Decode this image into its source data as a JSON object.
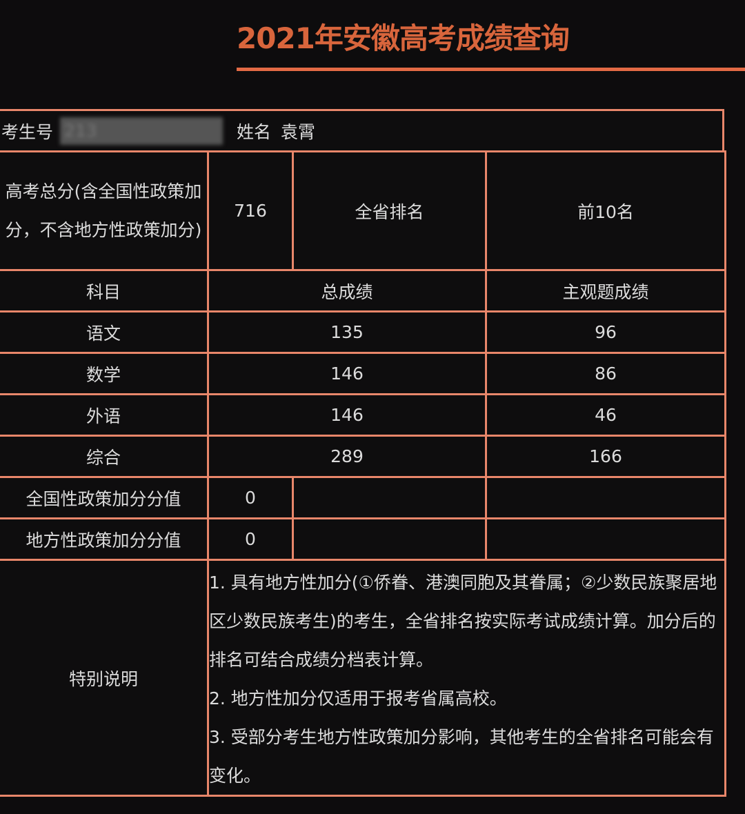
{
  "title": "2021年安徽高考成绩查询",
  "header": {
    "exam_no_label": "考生号",
    "exam_no_value": "213",
    "name_label": "姓名",
    "name_value": "袁霄"
  },
  "total": {
    "label": "高考总分(含全国性政策加分，不含地方性政策加分)",
    "value": "716",
    "rank_label": "全省排名",
    "rank_value": "前10名"
  },
  "columns": [
    "科目",
    "总成绩",
    "主观题成绩"
  ],
  "rows": [
    {
      "subject": "语文",
      "total": "135",
      "subjective": "96"
    },
    {
      "subject": "数学",
      "total": "146",
      "subjective": "86"
    },
    {
      "subject": "外语",
      "total": "146",
      "subjective": "46"
    },
    {
      "subject": "综合",
      "total": "289",
      "subjective": "166"
    }
  ],
  "bonus": [
    {
      "label": "全国性政策加分分值",
      "value": "0"
    },
    {
      "label": "地方性政策加分分值",
      "value": "0"
    }
  ],
  "notes": {
    "label": "特别说明",
    "items": [
      "1. 具有地方性加分(①侨眷、港澳同胞及其眷属；②少数民族聚居地区少数民族考生)的考生，全省排名按实际考试成绩计算。加分后的排名可结合成绩分档表计算。",
      "2. 地方性加分仅适用于报考省属高校。",
      "3. 受部分考生地方性政策加分影响，其他考生的全省排名可能会有变化。"
    ]
  },
  "colors": {
    "accent": "#e26a45",
    "border": "#e8866a",
    "background": "#0d0c0d"
  }
}
